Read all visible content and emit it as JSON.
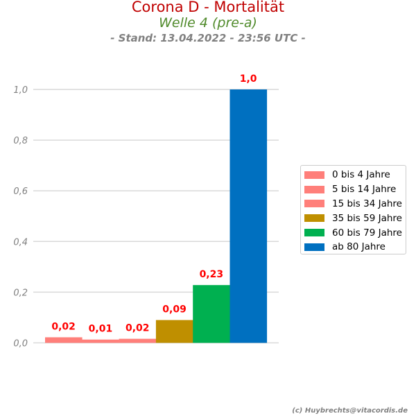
{
  "titles": {
    "title": "Corona D - Mortalität",
    "subtitle": "Welle 4 (pre-a)",
    "stand": "- Stand: 13.04.2022 - 23:56 UTC -"
  },
  "credit": "(c) Huybrechts@vitacordis.de",
  "chart_data": {
    "type": "bar",
    "title": "Corona D - Mortalität",
    "subtitle": "Welle 4 (pre-a)",
    "xlabel": "",
    "ylabel": "",
    "ylim": [
      0,
      1.0
    ],
    "yticks": [
      0.0,
      0.2,
      0.4,
      0.6,
      0.8,
      1.0
    ],
    "ytick_labels": [
      "0,0",
      "0,2",
      "0,4",
      "0,6",
      "0,8",
      "1,0"
    ],
    "grid": true,
    "legend_position": "right",
    "categories": [
      "0 bis 4 Jahre",
      "5 bis 14 Jahre",
      "15 bis 34 Jahre",
      "35 bis 59 Jahre",
      "60 bis 79 Jahre",
      "ab 80 Jahre"
    ],
    "values": [
      0.022,
      0.013,
      0.016,
      0.09,
      0.228,
      1.0
    ],
    "data_labels": [
      "0,02",
      "0,01",
      "0,02",
      "0,09",
      "0,23",
      "1,0"
    ],
    "colors": [
      "#ff7f7a",
      "#ff7f7a",
      "#ff7f7a",
      "#bf8f00",
      "#00b050",
      "#0070c0"
    ],
    "label_color": "#ff0000"
  }
}
